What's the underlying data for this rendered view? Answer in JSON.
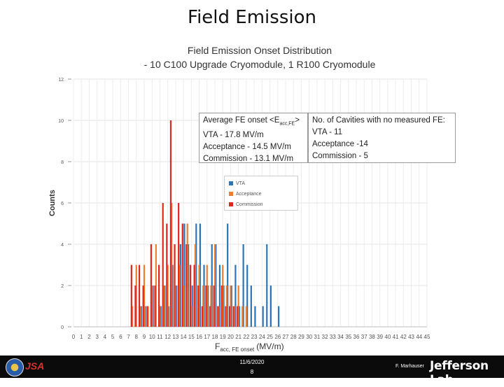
{
  "slide": {
    "title": "Field Emission",
    "footer_date": "11/6/2020",
    "footer_page": "8",
    "footer_author": "F. Marhauser",
    "footer_lab": "Jefferson Lab",
    "footer_logo_text": "JSA"
  },
  "chart_data": {
    "type": "bar",
    "title": "Field Emission Onset Distribution",
    "subtitle": "- 10 C100 Upgrade Cryomodule, 1 R100 Cryomodule",
    "xlabel_main": "F",
    "xlabel_sub": "acc, FE onset",
    "xlabel_unit": "(MV/m)",
    "ylabel": "Counts",
    "ylim": [
      0,
      12
    ],
    "yticks": [
      "0",
      "2",
      "4",
      "6",
      "8",
      "10",
      "12"
    ],
    "xlim": [
      0,
      45
    ],
    "xticks": [
      "0",
      "1",
      "2",
      "3",
      "4",
      "5",
      "6",
      "7",
      "8",
      "9",
      "10",
      "11",
      "12",
      "13",
      "14",
      "15",
      "16",
      "17",
      "18",
      "19",
      "20",
      "21",
      "22",
      "23",
      "24",
      "25",
      "26",
      "27",
      "28",
      "29",
      "30",
      "31",
      "32",
      "33",
      "34",
      "35",
      "36",
      "37",
      "38",
      "39",
      "40",
      "41",
      "42",
      "43",
      "44",
      "45"
    ],
    "legend": [
      "VTA",
      "Acceptance",
      "Commission"
    ],
    "series": [
      {
        "name": "VTA",
        "color": "#2e75b6",
        "x": [
          8.5,
          9,
          10,
          11,
          11.5,
          12,
          12.5,
          13,
          13.5,
          14,
          14.5,
          15,
          15.5,
          16,
          16.5,
          17,
          17.5,
          18,
          18.5,
          19,
          19.5,
          20,
          20.5,
          21,
          21.5,
          22,
          22.5,
          23,
          24,
          24.5,
          25,
          26
        ],
        "values": [
          1,
          1,
          2,
          1,
          2,
          1,
          3,
          2,
          4,
          5,
          4,
          2,
          5,
          5,
          3,
          2,
          4,
          4,
          3,
          2,
          5,
          2,
          3,
          1,
          4,
          3,
          2,
          1,
          1,
          4,
          2,
          1
        ]
      },
      {
        "name": "Acceptance",
        "color": "#ed7d31",
        "x": [
          7.5,
          8,
          8.5,
          9,
          9.5,
          10,
          10.5,
          11,
          11.5,
          12,
          12.5,
          13,
          13.5,
          14,
          14.5,
          15,
          15.5,
          16,
          16.5,
          17,
          17.5,
          18,
          18.5,
          19,
          19.5,
          20,
          20.5,
          21,
          21.5,
          22
        ],
        "values": [
          1,
          3,
          1,
          3,
          1,
          2,
          4,
          1,
          2,
          3,
          6,
          2,
          3,
          2,
          5,
          1,
          4,
          3,
          2,
          3,
          2,
          4,
          1,
          3,
          2,
          2,
          1,
          2,
          1,
          1
        ]
      },
      {
        "name": "Commission",
        "color": "#e0271f",
        "x": [
          7.5,
          8,
          8.5,
          9,
          9.5,
          10,
          10.5,
          11,
          11.5,
          12,
          12.5,
          13,
          13.5,
          14,
          14.5,
          15,
          15.5,
          16,
          16.5,
          17,
          17.5,
          18,
          18.5,
          19,
          19.5,
          20,
          20.5,
          21
        ],
        "values": [
          3,
          2,
          3,
          2,
          1,
          4,
          2,
          3,
          6,
          5,
          10,
          4,
          6,
          5,
          4,
          3,
          3,
          2,
          1,
          2,
          1,
          2,
          1,
          2,
          1,
          1,
          1,
          1
        ]
      }
    ],
    "annotations": {
      "avg_header_prefix": "Average FE onset <E",
      "avg_header_sub": "acc,FE",
      "avg_header_suffix": ">",
      "avg_lines": [
        "VTA - 17.8 MV/m",
        "Acceptance - 14.5 MV/m",
        "Commission - 13.1 MV/m"
      ],
      "none_header": "No. of Cavities with no measured FE:",
      "none_lines": [
        "VTA - 11",
        "Acceptance -14",
        "Commission - 5"
      ]
    }
  }
}
